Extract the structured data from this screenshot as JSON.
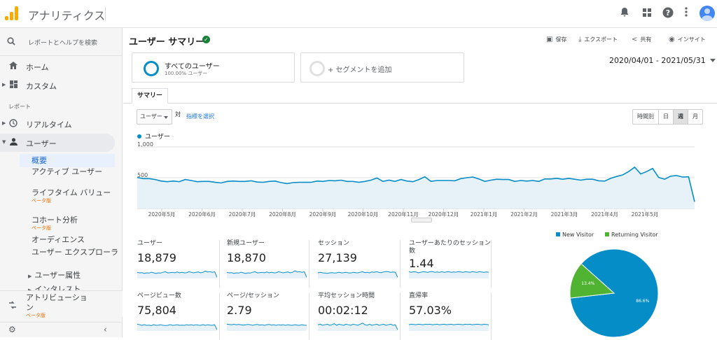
{
  "app": {
    "title": "アナリティクス",
    "brand_color": "#f9ab00"
  },
  "topbar": {
    "icons": [
      "bell-icon",
      "apps-icon",
      "help-icon",
      "more-vert-icon",
      "avatar"
    ]
  },
  "sidebar": {
    "search_placeholder": "レポートとヘルプを検索",
    "home": "ホーム",
    "custom": "カスタム",
    "reports_label": "レポート",
    "realtime": "リアルタイム",
    "user": "ユーザー",
    "user_items": [
      {
        "label": "概要",
        "selected": true
      },
      {
        "label": "アクティブ ユーザー"
      },
      {
        "label": "ライフタイム バリュー",
        "badge": "ベータ版"
      },
      {
        "label": "コホート分析",
        "badge": "ベータ版"
      },
      {
        "label": "オーディエンス"
      },
      {
        "label": "ユーザー エクスプローラ"
      },
      {
        "label": "ユーザー属性"
      },
      {
        "label": "インタレスト"
      }
    ],
    "attribution": "アトリビューション",
    "attribution_badge": "ベータ版",
    "collapse_icon": "chevron-left-icon",
    "settings_icon": "gear-icon"
  },
  "header": {
    "title": "ユーザー サマリー",
    "verified_icon": "shield-check-icon",
    "actions": [
      "保存",
      "エクスポート",
      "共有",
      "インサイト"
    ]
  },
  "segments": {
    "active": {
      "name": "すべてのユーザー",
      "share": "100.00% ユーザー"
    },
    "add_label": "+ セグメントを追加"
  },
  "date_range": "2020/04/01 - 2021/05/31",
  "tabs": [
    "サマリー"
  ],
  "controls": {
    "metric_select": "ユーザー",
    "vs": "対",
    "pick_metric": "指標を選択",
    "granularity": [
      "時間別",
      "日",
      "週",
      "月"
    ],
    "granularity_selected": "週"
  },
  "chart_data": {
    "type": "area",
    "series": [
      {
        "name": "ユーザー",
        "color": "#058dc7",
        "values": [
          505,
          485,
          485,
          470,
          445,
          435,
          445,
          435,
          470,
          455,
          435,
          440,
          440,
          425,
          415,
          440,
          445,
          440,
          440,
          450,
          430,
          425,
          440,
          445,
          420,
          405,
          420,
          425,
          425,
          425,
          445,
          440,
          455,
          450,
          460,
          440,
          440,
          425,
          440,
          460,
          495,
          440,
          460,
          440,
          470,
          445,
          435,
          470,
          515,
          440,
          455,
          455,
          455,
          450,
          485,
          500,
          510,
          480,
          440,
          460,
          475,
          470,
          470,
          440,
          455,
          445,
          455,
          440,
          480,
          480,
          490,
          475,
          490,
          475,
          460,
          475,
          475,
          450,
          445,
          490,
          520,
          545,
          600,
          670,
          560,
          600,
          650,
          505,
          475,
          525,
          535,
          510,
          515,
          110
        ]
      }
    ],
    "x_labels": [
      "2020年5月",
      "2020年6月",
      "2020年7月",
      "2020年8月",
      "2020年9月",
      "2020年10月",
      "2020年11月",
      "2020年12月",
      "2021年1月",
      "2021年2月",
      "2021年3月",
      "2021年4月",
      "2021年5月"
    ],
    "y_ticks": [
      "1,000",
      "500"
    ],
    "ylim": [
      0,
      1000
    ],
    "grid": true
  },
  "scorecards": [
    {
      "name": "ユーザー",
      "value": "18,879",
      "spark": [
        0.55,
        0.5,
        0.52,
        0.45,
        0.5,
        0.48,
        0.55,
        0.5,
        0.45,
        0.5,
        0.48,
        0.55,
        0.6,
        0.5,
        0.52,
        0.55,
        0.5,
        0.58,
        0.5,
        0.55,
        0.5,
        0.52,
        0.6,
        0.55,
        0.5,
        0.55,
        0.58,
        0.5,
        0.55,
        0.65,
        0.58,
        0.6,
        0.55,
        0.6,
        0.1
      ]
    },
    {
      "name": "新規ユーザー",
      "value": "18,870",
      "spark": [
        0.55,
        0.5,
        0.52,
        0.45,
        0.5,
        0.48,
        0.55,
        0.5,
        0.45,
        0.5,
        0.48,
        0.55,
        0.6,
        0.5,
        0.52,
        0.55,
        0.5,
        0.58,
        0.5,
        0.55,
        0.5,
        0.52,
        0.6,
        0.55,
        0.5,
        0.55,
        0.58,
        0.5,
        0.55,
        0.68,
        0.58,
        0.6,
        0.55,
        0.6,
        0.1
      ]
    },
    {
      "name": "セッション",
      "value": "27,139",
      "spark": [
        0.5,
        0.55,
        0.5,
        0.48,
        0.45,
        0.5,
        0.52,
        0.48,
        0.5,
        0.55,
        0.5,
        0.52,
        0.55,
        0.5,
        0.48,
        0.55,
        0.52,
        0.5,
        0.55,
        0.6,
        0.52,
        0.55,
        0.5,
        0.58,
        0.55,
        0.6,
        0.55,
        0.52,
        0.58,
        0.62,
        0.6,
        0.55,
        0.58,
        0.55,
        0.1
      ]
    },
    {
      "name": "ユーザーあたりのセッション数",
      "value": "1.44",
      "spark": [
        0.6,
        0.55,
        0.6,
        0.58,
        0.5,
        0.55,
        0.6,
        0.58,
        0.55,
        0.6,
        0.62,
        0.55,
        0.58,
        0.55,
        0.6,
        0.55,
        0.58,
        0.6,
        0.55,
        0.58,
        0.56,
        0.6,
        0.58,
        0.55,
        0.6,
        0.58,
        0.55,
        0.6,
        0.58,
        0.55,
        0.6,
        0.58,
        0.55,
        0.58,
        0.56
      ]
    },
    {
      "name": "ページビュー数",
      "value": "75,804",
      "spark": [
        0.6,
        0.55,
        0.5,
        0.55,
        0.5,
        0.52,
        0.48,
        0.55,
        0.5,
        0.52,
        0.55,
        0.5,
        0.48,
        0.5,
        0.55,
        0.5,
        0.52,
        0.55,
        0.5,
        0.52,
        0.5,
        0.55,
        0.52,
        0.55,
        0.5,
        0.55,
        0.52,
        0.5,
        0.55,
        0.5,
        0.55,
        0.52,
        0.5,
        0.55,
        0.1
      ]
    },
    {
      "name": "ページ/セッション",
      "value": "2.79",
      "spark": [
        0.6,
        0.58,
        0.55,
        0.6,
        0.55,
        0.58,
        0.55,
        0.52,
        0.55,
        0.58,
        0.55,
        0.5,
        0.55,
        0.58,
        0.52,
        0.55,
        0.5,
        0.55,
        0.58,
        0.52,
        0.55,
        0.5,
        0.55,
        0.52,
        0.55,
        0.5,
        0.55,
        0.52,
        0.5,
        0.55,
        0.52,
        0.5,
        0.55,
        0.52,
        0.5
      ]
    },
    {
      "name": "平均セッション時間",
      "value": "00:02:12",
      "spark": [
        0.55,
        0.6,
        0.5,
        0.55,
        0.6,
        0.5,
        0.55,
        0.65,
        0.5,
        0.6,
        0.55,
        0.5,
        0.6,
        0.55,
        0.5,
        0.6,
        0.55,
        0.5,
        0.6,
        0.7,
        0.55,
        0.5,
        0.6,
        0.5,
        0.55,
        0.6,
        0.5,
        0.55,
        0.6,
        0.5,
        0.55,
        0.6,
        0.5,
        0.55,
        0.1
      ]
    },
    {
      "name": "直帰率",
      "value": "57.03%",
      "spark": [
        0.55,
        0.6,
        0.58,
        0.55,
        0.6,
        0.58,
        0.55,
        0.6,
        0.58,
        0.6,
        0.55,
        0.58,
        0.6,
        0.55,
        0.58,
        0.6,
        0.55,
        0.58,
        0.6,
        0.55,
        0.58,
        0.6,
        0.58,
        0.55,
        0.6,
        0.58,
        0.6,
        0.55,
        0.58,
        0.6,
        0.58,
        0.55,
        0.6,
        0.58,
        0.55
      ]
    }
  ],
  "pie": {
    "legend": [
      {
        "name": "New Visitor",
        "color": "#058dc7"
      },
      {
        "name": "Returning Visitor",
        "color": "#50b432"
      }
    ],
    "slices": [
      {
        "name": "New Visitor",
        "label": "86.6%",
        "value": 86.6
      },
      {
        "name": "Returning Visitor",
        "label": "13.4%",
        "value": 13.4
      }
    ]
  }
}
